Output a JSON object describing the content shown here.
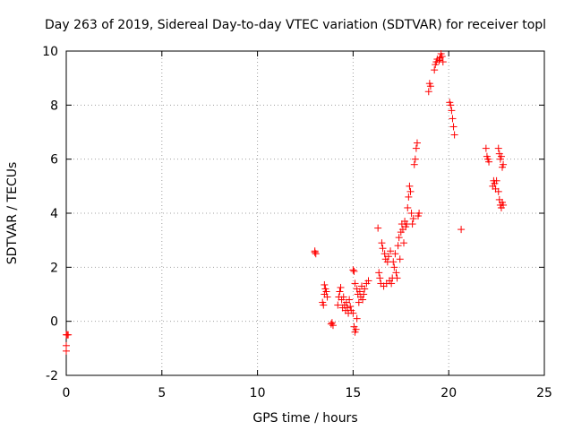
{
  "chart_data": {
    "type": "scatter",
    "title": "Day 263 of 2019, Sidereal Day-to-day VTEC variation (SDTVAR) for receiver topl",
    "xlabel": "GPS time / hours",
    "ylabel": "SDTVAR / TECUs",
    "xlim": [
      0,
      25
    ],
    "ylim": [
      -2,
      10
    ],
    "x_ticks": [
      0,
      5,
      10,
      15,
      20,
      25
    ],
    "y_ticks": [
      -2,
      0,
      2,
      4,
      6,
      8,
      10
    ],
    "x_tick_labels": [
      "0",
      "5",
      "10",
      "15",
      "20",
      "25"
    ],
    "y_tick_labels": [
      "-2",
      "0",
      "2",
      "4",
      "6",
      "8",
      "10"
    ],
    "grid": true,
    "marker": "plus",
    "color": "#ff0000",
    "series": [
      {
        "name": "SDTVAR",
        "points": [
          [
            0.0,
            -0.5
          ],
          [
            0.05,
            -0.5
          ],
          [
            0.1,
            -0.5
          ],
          [
            0.0,
            -0.9
          ],
          [
            0.0,
            -1.1
          ],
          [
            13.0,
            2.6
          ],
          [
            13.05,
            2.5
          ],
          [
            13.0,
            2.55
          ],
          [
            13.4,
            0.7
          ],
          [
            13.45,
            0.6
          ],
          [
            13.5,
            1.0
          ],
          [
            13.55,
            1.2
          ],
          [
            13.6,
            1.1
          ],
          [
            13.5,
            1.35
          ],
          [
            13.65,
            0.9
          ],
          [
            13.85,
            -0.1
          ],
          [
            13.9,
            -0.05
          ],
          [
            13.95,
            -0.15
          ],
          [
            14.2,
            0.6
          ],
          [
            14.25,
            0.9
          ],
          [
            14.3,
            1.1
          ],
          [
            14.35,
            1.25
          ],
          [
            14.4,
            0.8
          ],
          [
            14.45,
            0.5
          ],
          [
            14.5,
            0.9
          ],
          [
            14.55,
            0.6
          ],
          [
            14.6,
            0.4
          ],
          [
            14.65,
            0.7
          ],
          [
            14.7,
            0.5
          ],
          [
            14.75,
            0.3
          ],
          [
            14.8,
            0.8
          ],
          [
            14.85,
            0.55
          ],
          [
            14.9,
            0.4
          ],
          [
            15.0,
            1.9
          ],
          [
            15.05,
            1.85
          ],
          [
            15.05,
            -0.2
          ],
          [
            15.1,
            -0.4
          ],
          [
            15.15,
            -0.3
          ],
          [
            15.2,
            0.1
          ],
          [
            15.0,
            0.3
          ],
          [
            15.1,
            1.4
          ],
          [
            15.2,
            1.2
          ],
          [
            15.25,
            1.0
          ],
          [
            15.3,
            0.7
          ],
          [
            15.35,
            1.1
          ],
          [
            15.4,
            0.9
          ],
          [
            15.45,
            1.3
          ],
          [
            15.5,
            0.8
          ],
          [
            15.55,
            1.0
          ],
          [
            15.6,
            1.2
          ],
          [
            15.7,
            1.4
          ],
          [
            15.8,
            1.5
          ],
          [
            16.3,
            3.45
          ],
          [
            16.35,
            1.8
          ],
          [
            16.4,
            1.6
          ],
          [
            16.45,
            1.4
          ],
          [
            16.5,
            2.9
          ],
          [
            16.55,
            2.7
          ],
          [
            16.6,
            1.3
          ],
          [
            16.65,
            2.5
          ],
          [
            16.7,
            2.3
          ],
          [
            16.75,
            1.4
          ],
          [
            16.8,
            2.2
          ],
          [
            16.85,
            2.4
          ],
          [
            16.9,
            1.5
          ],
          [
            16.95,
            2.6
          ],
          [
            17.0,
            1.4
          ],
          [
            17.05,
            1.6
          ],
          [
            17.1,
            2.2
          ],
          [
            17.15,
            2.0
          ],
          [
            17.2,
            2.5
          ],
          [
            17.25,
            1.8
          ],
          [
            17.3,
            1.6
          ],
          [
            17.35,
            2.8
          ],
          [
            17.4,
            3.1
          ],
          [
            17.45,
            2.3
          ],
          [
            17.5,
            3.3
          ],
          [
            17.55,
            3.6
          ],
          [
            17.6,
            3.4
          ],
          [
            17.65,
            2.9
          ],
          [
            17.7,
            3.7
          ],
          [
            17.75,
            3.5
          ],
          [
            17.8,
            3.6
          ],
          [
            17.85,
            4.2
          ],
          [
            17.9,
            4.6
          ],
          [
            17.95,
            5.0
          ],
          [
            18.0,
            4.8
          ],
          [
            18.05,
            4.0
          ],
          [
            18.1,
            3.6
          ],
          [
            18.15,
            3.8
          ],
          [
            18.2,
            5.8
          ],
          [
            18.25,
            6.0
          ],
          [
            18.3,
            6.4
          ],
          [
            18.35,
            6.6
          ],
          [
            18.4,
            3.9
          ],
          [
            18.45,
            4.0
          ],
          [
            18.95,
            8.5
          ],
          [
            19.0,
            8.8
          ],
          [
            19.05,
            8.7
          ],
          [
            19.25,
            9.3
          ],
          [
            19.3,
            9.5
          ],
          [
            19.35,
            9.6
          ],
          [
            19.4,
            9.7
          ],
          [
            19.5,
            9.65
          ],
          [
            19.55,
            9.75
          ],
          [
            19.6,
            9.9
          ],
          [
            19.65,
            9.8
          ],
          [
            19.7,
            9.6
          ],
          [
            20.05,
            8.1
          ],
          [
            20.1,
            8.0
          ],
          [
            20.15,
            7.8
          ],
          [
            20.2,
            7.5
          ],
          [
            20.25,
            7.2
          ],
          [
            20.3,
            6.9
          ],
          [
            20.65,
            3.4
          ],
          [
            21.95,
            6.4
          ],
          [
            22.0,
            6.1
          ],
          [
            22.05,
            6.0
          ],
          [
            22.1,
            5.9
          ],
          [
            22.3,
            5.0
          ],
          [
            22.35,
            5.2
          ],
          [
            22.4,
            5.1
          ],
          [
            22.45,
            4.9
          ],
          [
            22.5,
            5.2
          ],
          [
            22.6,
            6.4
          ],
          [
            22.65,
            6.2
          ],
          [
            22.7,
            6.0
          ],
          [
            22.75,
            6.1
          ],
          [
            22.8,
            5.7
          ],
          [
            22.85,
            5.8
          ],
          [
            22.6,
            4.8
          ],
          [
            22.65,
            4.5
          ],
          [
            22.7,
            4.3
          ],
          [
            22.75,
            4.2
          ],
          [
            22.8,
            4.4
          ],
          [
            22.85,
            4.3
          ]
        ]
      }
    ]
  }
}
